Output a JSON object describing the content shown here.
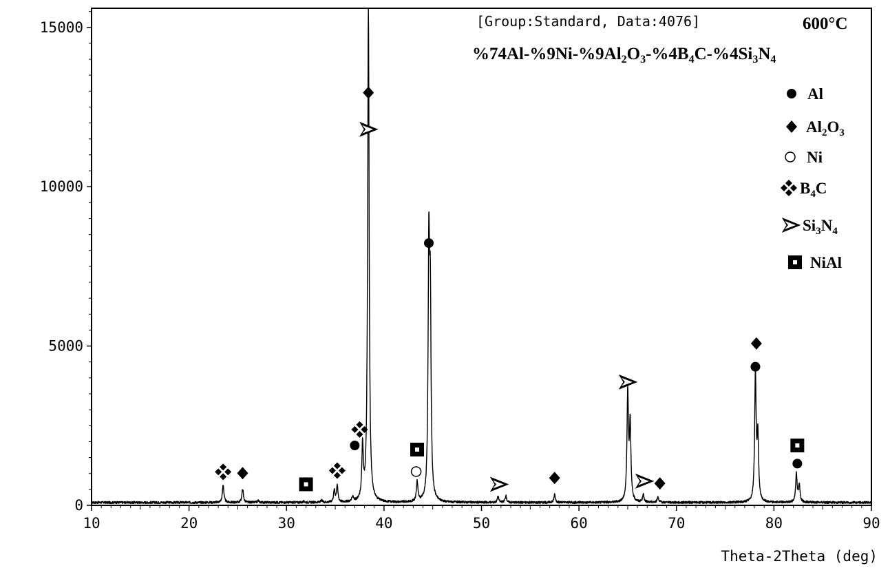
{
  "chart_data": {
    "type": "line",
    "header_text": "[Group:Standard, Data:4076]",
    "temperature_label": "600°C",
    "title_parts": [
      {
        "t": "%74Al-%9Ni-%9Al"
      },
      {
        "t": "2",
        "sub": true
      },
      {
        "t": "O"
      },
      {
        "t": "3",
        "sub": true
      },
      {
        "t": "-%4B"
      },
      {
        "t": "4",
        "sub": true
      },
      {
        "t": "C-%4Si"
      },
      {
        "t": "3",
        "sub": true
      },
      {
        "t": "N"
      },
      {
        "t": "4",
        "sub": true
      }
    ],
    "xlabel": "Theta-2Theta (deg)",
    "ylabel": "",
    "xlim": [
      10,
      90
    ],
    "ylim": [
      0,
      15600
    ],
    "x_ticks": [
      "10",
      "20",
      "30",
      "40",
      "50",
      "60",
      "70",
      "80",
      "90"
    ],
    "y_ticks": [
      "0",
      "5000",
      "10000",
      "15000"
    ],
    "grid": false,
    "legend_position": "top-right",
    "legend": [
      {
        "symbol": "filled-circle",
        "parts": [
          {
            "t": "Al"
          }
        ]
      },
      {
        "symbol": "filled-diamond",
        "parts": [
          {
            "t": "Al"
          },
          {
            "t": "2",
            "sub": true
          },
          {
            "t": "O"
          },
          {
            "t": "3",
            "sub": true
          }
        ]
      },
      {
        "symbol": "open-circle",
        "parts": [
          {
            "t": "Ni"
          }
        ]
      },
      {
        "symbol": "quad-diamond",
        "parts": [
          {
            "t": "B"
          },
          {
            "t": "4",
            "sub": true
          },
          {
            "t": "C"
          }
        ]
      },
      {
        "symbol": "arrowhead",
        "parts": [
          {
            "t": "Si"
          },
          {
            "t": "3",
            "sub": true
          },
          {
            "t": "N"
          },
          {
            "t": "4",
            "sub": true
          }
        ]
      },
      {
        "symbol": "square",
        "parts": [
          {
            "t": "NiAl"
          }
        ]
      }
    ],
    "baseline": 90,
    "peaks": [
      {
        "x": 23.5,
        "y": 650
      },
      {
        "x": 25.5,
        "y": 520
      },
      {
        "x": 27.1,
        "y": 150
      },
      {
        "x": 31.8,
        "y": 120
      },
      {
        "x": 33.6,
        "y": 150
      },
      {
        "x": 34.9,
        "y": 450
      },
      {
        "x": 35.2,
        "y": 620
      },
      {
        "x": 36.8,
        "y": 250
      },
      {
        "x": 37.8,
        "y": 1750
      },
      {
        "x": 38.4,
        "y": 15600
      },
      {
        "x": 43.4,
        "y": 720
      },
      {
        "x": 44.6,
        "y": 7700
      },
      {
        "x": 44.75,
        "y": 5800
      },
      {
        "x": 51.7,
        "y": 280
      },
      {
        "x": 52.5,
        "y": 300
      },
      {
        "x": 57.5,
        "y": 340
      },
      {
        "x": 65.0,
        "y": 3500
      },
      {
        "x": 65.25,
        "y": 2500
      },
      {
        "x": 66.6,
        "y": 330
      },
      {
        "x": 68.1,
        "y": 270
      },
      {
        "x": 78.1,
        "y": 4100
      },
      {
        "x": 78.35,
        "y": 2100
      },
      {
        "x": 82.3,
        "y": 980
      },
      {
        "x": 82.6,
        "y": 650
      }
    ],
    "markers": [
      {
        "phase": "B4C",
        "x": 23.5,
        "y": 1050
      },
      {
        "phase": "Al2O3",
        "x": 25.5,
        "y": 1010
      },
      {
        "phase": "NiAl",
        "x": 32.0,
        "y": 660
      },
      {
        "phase": "B4C",
        "x": 35.2,
        "y": 1090
      },
      {
        "phase": "Al",
        "x": 37.0,
        "y": 1880
      },
      {
        "phase": "B4C",
        "x": 37.5,
        "y": 2380
      },
      {
        "phase": "Al2O3",
        "x": 38.4,
        "y": 12950
      },
      {
        "phase": "Si3N4",
        "x": 38.4,
        "y": 11800
      },
      {
        "phase": "NiAl",
        "x": 43.4,
        "y": 1750
      },
      {
        "phase": "Ni",
        "x": 43.3,
        "y": 1060
      },
      {
        "phase": "Al",
        "x": 44.6,
        "y": 8230
      },
      {
        "phase": "Si3N4",
        "x": 51.8,
        "y": 660
      },
      {
        "phase": "Al2O3",
        "x": 57.5,
        "y": 860
      },
      {
        "phase": "Si3N4",
        "x": 65.0,
        "y": 3870
      },
      {
        "phase": "Si3N4",
        "x": 66.7,
        "y": 760
      },
      {
        "phase": "Al2O3",
        "x": 68.3,
        "y": 690
      },
      {
        "phase": "Al2O3",
        "x": 78.2,
        "y": 5080
      },
      {
        "phase": "Al",
        "x": 78.1,
        "y": 4350
      },
      {
        "phase": "NiAl",
        "x": 82.4,
        "y": 1880
      },
      {
        "phase": "Al",
        "x": 82.4,
        "y": 1310
      }
    ]
  }
}
